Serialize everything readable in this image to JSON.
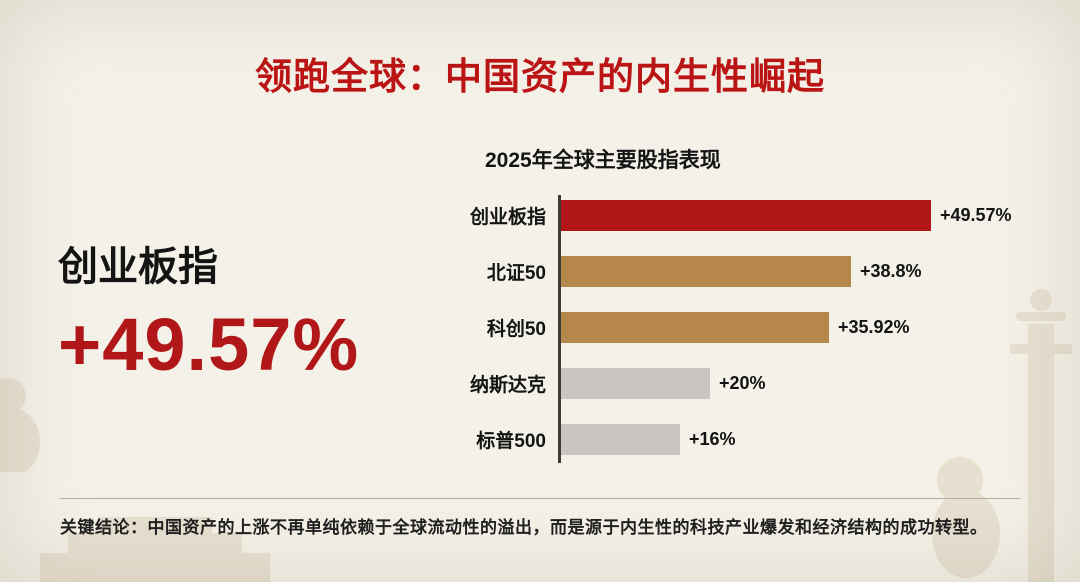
{
  "slide": {
    "title": "领跑全球：中国资产的内生性崛起",
    "highlight": {
      "label": "创业板指",
      "value": "+49.57%"
    },
    "footer": {
      "conclusion": "关键结论：中国资产的上涨不再单纯依赖于全球流动性的溢出，而是源于内生性的科技产业爆发和经济结构的成功转型。"
    }
  },
  "chart_data": {
    "type": "bar",
    "orientation": "horizontal",
    "title": "2025年全球主要股指表现",
    "categories": [
      "创业板指",
      "北证50",
      "科创50",
      "纳斯达克",
      "标普500"
    ],
    "values": [
      49.57,
      38.8,
      35.92,
      20,
      16
    ],
    "value_labels": [
      "+49.57%",
      "+38.8%",
      "+35.92%",
      "+20%",
      "+16%"
    ],
    "bar_colors": [
      "#b11718",
      "#b5874a",
      "#b5874a",
      "#c9c6c1",
      "#c9c6c1"
    ],
    "xlim": [
      0,
      52
    ],
    "grid": false,
    "legend": false
  },
  "colors": {
    "title_red": "#bc1516",
    "highlight_red": "#b11718",
    "china_red_bar": "#b11718",
    "bronze_bar": "#b5874a",
    "gray_bar": "#c9c6c1",
    "background": "#f4f1e8",
    "text_dark": "#1c1c1c"
  }
}
